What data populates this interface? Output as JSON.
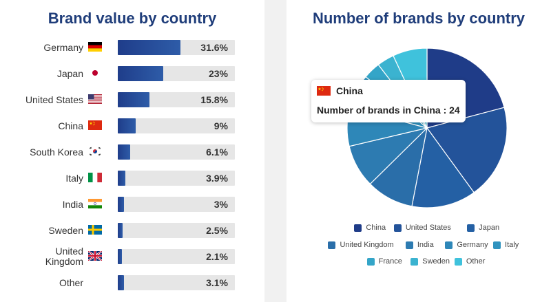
{
  "chart_data": [
    {
      "type": "bar",
      "title": "Brand value by country",
      "categories": [
        "Germany",
        "Japan",
        "United States",
        "China",
        "South Korea",
        "Italy",
        "India",
        "Sweden",
        "United Kingdom",
        "Other"
      ],
      "values": [
        31.6,
        23,
        15.8,
        9,
        6.1,
        3.9,
        3,
        2.5,
        2.1,
        3.1
      ],
      "value_labels": [
        "31.6%",
        "23%",
        "15.8%",
        "9%",
        "6.1%",
        "3.9%",
        "3%",
        "2.5%",
        "2.1%",
        "3.1%"
      ],
      "flags": [
        "germany-flag-icon",
        "japan-flag-icon",
        "united-states-flag-icon",
        "china-flag-icon",
        "south-korea-flag-icon",
        "italy-flag-icon",
        "india-flag-icon",
        "sweden-flag-icon",
        "united-kingdom-flag-icon",
        "none"
      ],
      "xlim": [
        0,
        100
      ],
      "bar_color": "#1f3d8a",
      "track_color": "#e6e6e6"
    },
    {
      "type": "pie",
      "title": "Number of brands by country",
      "categories": [
        "China",
        "United States",
        "Japan",
        "United Kingdom",
        "India",
        "Germany",
        "Italy",
        "France",
        "Sweden",
        "Other"
      ],
      "values": [
        24,
        22,
        15,
        11,
        10,
        9,
        8,
        4,
        4,
        8
      ],
      "colors": [
        "#1f3c88",
        "#23539a",
        "#2460a4",
        "#2a6ea9",
        "#2d7bb1",
        "#2e87b8",
        "#3093bf",
        "#34a5c8",
        "#3bb3d0",
        "#3fc2dc"
      ],
      "legend_position": "bottom",
      "tooltip": {
        "title": "China",
        "line": "Number of brands in China : 24",
        "flag": "china-flag-icon"
      }
    }
  ]
}
